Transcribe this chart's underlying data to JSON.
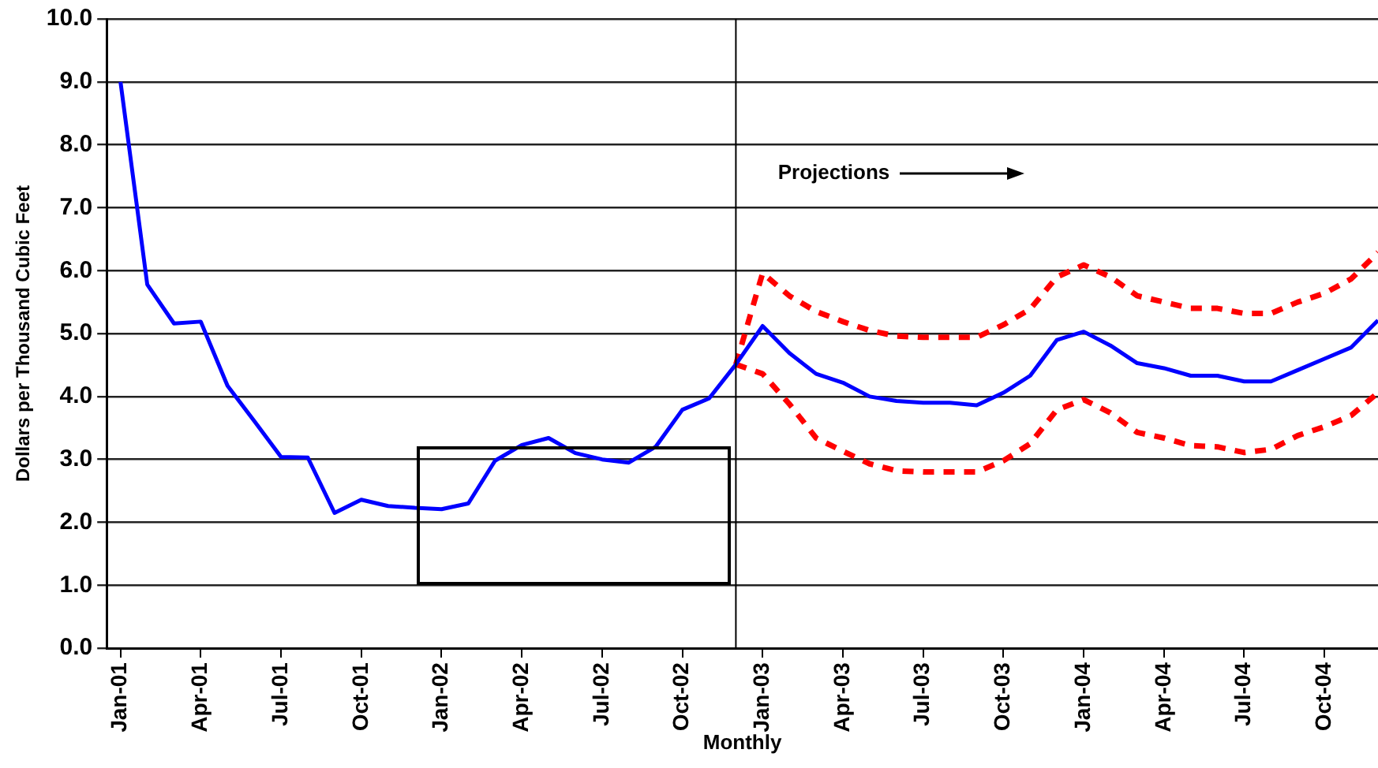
{
  "chart_data": {
    "type": "line",
    "xlabel": "Monthly",
    "ylabel": "Dollars per Thousand Cubic Feet",
    "annotations": [
      "Projections"
    ],
    "x": [
      "2001-01",
      "2001-02",
      "2001-03",
      "2001-04",
      "2001-05",
      "2001-06",
      "2001-07",
      "2001-08",
      "2001-09",
      "2001-10",
      "2001-11",
      "2001-12",
      "2002-01",
      "2002-02",
      "2002-03",
      "2002-04",
      "2002-05",
      "2002-06",
      "2002-07",
      "2002-08",
      "2002-09",
      "2002-10",
      "2002-11",
      "2002-12",
      "2003-01",
      "2003-02",
      "2003-03",
      "2003-04",
      "2003-05",
      "2003-06",
      "2003-07",
      "2003-08",
      "2003-09",
      "2003-10",
      "2003-11",
      "2003-12",
      "2004-01",
      "2004-02",
      "2004-03",
      "2004-04",
      "2004-05",
      "2004-06",
      "2004-07",
      "2004-08",
      "2004-09",
      "2004-10",
      "2004-11",
      "2004-12"
    ],
    "series": [
      {
        "color": "#0000ff",
        "line_style": "solid",
        "values": [
          9.0,
          5.78,
          5.16,
          5.19,
          4.17,
          3.61,
          3.04,
          3.03,
          2.15,
          2.36,
          2.26,
          2.23,
          2.21,
          2.3,
          2.98,
          3.23,
          3.34,
          3.1,
          3.0,
          2.95,
          3.2,
          3.79,
          3.97,
          4.51,
          5.12,
          4.69,
          4.36,
          4.22,
          4.0,
          3.93,
          3.9,
          3.9,
          3.86,
          4.06,
          4.33,
          4.9,
          5.03,
          4.81,
          4.53,
          4.45,
          4.33,
          4.33,
          4.24,
          4.24,
          4.42,
          4.6,
          4.78,
          5.21
        ]
      },
      {
        "color": "#ff0000",
        "line_style": "dashed",
        "values": [
          null,
          null,
          null,
          null,
          null,
          null,
          null,
          null,
          null,
          null,
          null,
          null,
          null,
          null,
          null,
          null,
          null,
          null,
          null,
          null,
          null,
          null,
          null,
          4.51,
          5.96,
          5.6,
          5.35,
          5.19,
          5.05,
          4.96,
          4.94,
          4.94,
          4.94,
          5.14,
          5.39,
          5.9,
          6.09,
          5.9,
          5.6,
          5.5,
          5.4,
          5.4,
          5.32,
          5.32,
          5.5,
          5.64,
          5.87,
          6.29
        ]
      },
      {
        "color": "#ff0000",
        "line_style": "dashed",
        "values": [
          null,
          null,
          null,
          null,
          null,
          null,
          null,
          null,
          null,
          null,
          null,
          null,
          null,
          null,
          null,
          null,
          null,
          null,
          null,
          null,
          null,
          null,
          null,
          4.51,
          4.36,
          3.88,
          3.34,
          3.13,
          2.93,
          2.82,
          2.8,
          2.8,
          2.8,
          2.98,
          3.25,
          3.79,
          3.95,
          3.74,
          3.43,
          3.34,
          3.22,
          3.2,
          3.11,
          3.16,
          3.38,
          3.52,
          3.7,
          4.06
        ]
      }
    ],
    "xlim": [
      "2000-12-16",
      "2004-12"
    ],
    "xticks": [
      {
        "value": "2001-01",
        "label": "Jan-01"
      },
      {
        "value": "2001-04",
        "label": "Apr-01"
      },
      {
        "value": "2001-07",
        "label": "Jul-01"
      },
      {
        "value": "2001-10",
        "label": "Oct-01"
      },
      {
        "value": "2002-01",
        "label": "Jan-02"
      },
      {
        "value": "2002-04",
        "label": "Apr-02"
      },
      {
        "value": "2002-07",
        "label": "Jul-02"
      },
      {
        "value": "2002-10",
        "label": "Oct-02"
      },
      {
        "value": "2003-01",
        "label": "Jan-03"
      },
      {
        "value": "2003-04",
        "label": "Apr-03"
      },
      {
        "value": "2003-07",
        "label": "Jul-03"
      },
      {
        "value": "2003-10",
        "label": "Oct-03"
      },
      {
        "value": "2004-01",
        "label": "Jan-04"
      },
      {
        "value": "2004-04",
        "label": "Apr-04"
      },
      {
        "value": "2004-07",
        "label": "Jul-04"
      },
      {
        "value": "2004-10",
        "label": "Oct-04"
      }
    ],
    "ylim": [
      0,
      10
    ],
    "yticks": [
      {
        "value": 0,
        "label": "0.0"
      },
      {
        "value": 1,
        "label": "1.0"
      },
      {
        "value": 2,
        "label": "2.0"
      },
      {
        "value": 3,
        "label": "3.0"
      },
      {
        "value": 4,
        "label": "4.0"
      },
      {
        "value": 5,
        "label": "5.0"
      },
      {
        "value": 6,
        "label": "6.0"
      },
      {
        "value": 7,
        "label": "7.0"
      },
      {
        "value": 8,
        "label": "8.0"
      },
      {
        "value": 9,
        "label": "9.0"
      },
      {
        "value": 10,
        "label": "10.0"
      }
    ],
    "ref_lines": [
      {
        "axis": "x",
        "value": "2002-12",
        "color": "#000000"
      }
    ],
    "grid": "y",
    "legend": false,
    "marker": "none"
  }
}
